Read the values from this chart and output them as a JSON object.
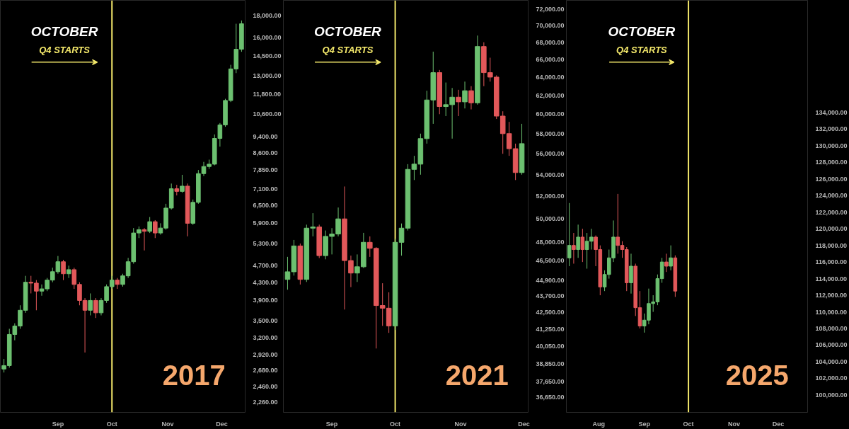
{
  "chart_data": [
    {
      "type": "candlestick",
      "log": true,
      "xlim": [
        "2017-07-31",
        "2017-12-14"
      ],
      "ylim": [
        2140,
        19500
      ],
      "xticks": [
        {
          "value": "2017-09-01",
          "label": "Sep"
        },
        {
          "value": "2017-10-01",
          "label": "Oct"
        },
        {
          "value": "2017-11-01",
          "label": "Nov"
        },
        {
          "value": "2017-12-01",
          "label": "Dec"
        }
      ],
      "yticks": [
        {
          "value": 2260,
          "label": "2,260.00"
        },
        {
          "value": 2460,
          "label": "2,460.00"
        },
        {
          "value": 2680,
          "label": "2,680.00"
        },
        {
          "value": 2920,
          "label": "2,920.00"
        },
        {
          "value": 3200,
          "label": "3,200.00"
        },
        {
          "value": 3500,
          "label": "3,500.00"
        },
        {
          "value": 3900,
          "label": "3,900.00"
        },
        {
          "value": 4300,
          "label": "4,300.00"
        },
        {
          "value": 4700,
          "label": "4,700.00"
        },
        {
          "value": 5300,
          "label": "5,300.00"
        },
        {
          "value": 5900,
          "label": "5,900.00"
        },
        {
          "value": 6500,
          "label": "6,500.00"
        },
        {
          "value": 7100,
          "label": "7,100.00"
        },
        {
          "value": 7850,
          "label": "7,850.00"
        },
        {
          "value": 8600,
          "label": "8,600.00"
        },
        {
          "value": 9400,
          "label": "9,400.00"
        },
        {
          "value": 10600,
          "label": "10,600.00"
        },
        {
          "value": 11800,
          "label": "11,800.00"
        },
        {
          "value": 13000,
          "label": "13,000.00"
        },
        {
          "value": 14500,
          "label": "14,500.00"
        },
        {
          "value": 16000,
          "label": "16,000.00"
        },
        {
          "value": 18000,
          "label": "18,000.00"
        }
      ],
      "ref_lines": [
        {
          "axis": "x",
          "value": "2017-10-01",
          "color": "#f2e76a"
        }
      ],
      "annotations": [
        "OCTOBER",
        "Q4 STARTS",
        "2017"
      ],
      "x": [
        "2017-08-02",
        "2017-08-05",
        "2017-08-08",
        "2017-08-11",
        "2017-08-14",
        "2017-08-17",
        "2017-08-20",
        "2017-08-23",
        "2017-08-26",
        "2017-08-29",
        "2017-09-01",
        "2017-09-04",
        "2017-09-07",
        "2017-09-10",
        "2017-09-13",
        "2017-09-16",
        "2017-09-19",
        "2017-09-22",
        "2017-09-25",
        "2017-09-28",
        "2017-10-01",
        "2017-10-04",
        "2017-10-07",
        "2017-10-10",
        "2017-10-13",
        "2017-10-16",
        "2017-10-19",
        "2017-10-22",
        "2017-10-25",
        "2017-10-28",
        "2017-10-31",
        "2017-11-03",
        "2017-11-06",
        "2017-11-09",
        "2017-11-12",
        "2017-11-15",
        "2017-11-18",
        "2017-11-21",
        "2017-11-24",
        "2017-11-27",
        "2017-11-30",
        "2017-12-03",
        "2017-12-06",
        "2017-12-09",
        "2017-12-12"
      ],
      "ohlc": [
        [
          2700,
          2850,
          2650,
          2750
        ],
        [
          2750,
          3350,
          2720,
          3250
        ],
        [
          3250,
          3450,
          3150,
          3400
        ],
        [
          3400,
          3800,
          3350,
          3700
        ],
        [
          3700,
          4450,
          3650,
          4300
        ],
        [
          4300,
          4450,
          4050,
          4280
        ],
        [
          4280,
          4350,
          3700,
          4100
        ],
        [
          4100,
          4250,
          4000,
          4150
        ],
        [
          4150,
          4400,
          4100,
          4350
        ],
        [
          4350,
          4650,
          4300,
          4550
        ],
        [
          4550,
          4950,
          4500,
          4800
        ],
        [
          4800,
          4850,
          4350,
          4500
        ],
        [
          4500,
          4700,
          4400,
          4600
        ],
        [
          4600,
          4650,
          4150,
          4250
        ],
        [
          4250,
          4300,
          3800,
          3900
        ],
        [
          3900,
          3950,
          2950,
          3700
        ],
        [
          3700,
          4050,
          3600,
          3900
        ],
        [
          3900,
          3950,
          3550,
          3650
        ],
        [
          3650,
          3950,
          3600,
          3900
        ],
        [
          3900,
          4250,
          3850,
          4200
        ],
        [
          4200,
          4450,
          4150,
          4350
        ],
        [
          4350,
          4400,
          4150,
          4250
        ],
        [
          4250,
          4500,
          4200,
          4450
        ],
        [
          4450,
          4900,
          4400,
          4800
        ],
        [
          4800,
          5750,
          4750,
          5600
        ],
        [
          5600,
          5800,
          5450,
          5700
        ],
        [
          5700,
          5750,
          5100,
          5650
        ],
        [
          5650,
          6100,
          5600,
          5950
        ],
        [
          5950,
          6000,
          5450,
          5600
        ],
        [
          5600,
          5900,
          5550,
          5750
        ],
        [
          5750,
          6550,
          5700,
          6400
        ],
        [
          6400,
          7300,
          6350,
          7100
        ],
        [
          7100,
          7250,
          6850,
          7000
        ],
        [
          7000,
          7650,
          6950,
          7200
        ],
        [
          7200,
          7300,
          5500,
          5900
        ],
        [
          5900,
          6700,
          5850,
          6600
        ],
        [
          6600,
          7850,
          6550,
          7700
        ],
        [
          7700,
          8200,
          7600,
          8000
        ],
        [
          8000,
          8300,
          7900,
          8100
        ],
        [
          8100,
          9500,
          8050,
          9300
        ],
        [
          9300,
          10100,
          8900,
          10000
        ],
        [
          10000,
          11500,
          9900,
          11400
        ],
        [
          11400,
          13800,
          11300,
          13500
        ],
        [
          13500,
          17200,
          13200,
          15000
        ],
        [
          15000,
          17500,
          14800,
          17200
        ]
      ],
      "colors": [
        "#6cc070",
        "#6cc070",
        "#6cc070",
        "#6cc070",
        "#6cc070",
        "#e2585a",
        "#e2585a",
        "#6cc070",
        "#6cc070",
        "#6cc070",
        "#6cc070",
        "#e2585a",
        "#6cc070",
        "#e2585a",
        "#e2585a",
        "#e2585a",
        "#6cc070",
        "#e2585a",
        "#6cc070",
        "#6cc070",
        "#6cc070",
        "#e2585a",
        "#6cc070",
        "#6cc070",
        "#6cc070",
        "#6cc070",
        "#e2585a",
        "#6cc070",
        "#e2585a",
        "#6cc070",
        "#6cc070",
        "#6cc070",
        "#e2585a",
        "#6cc070",
        "#e2585a",
        "#6cc070",
        "#6cc070",
        "#6cc070",
        "#6cc070",
        "#6cc070",
        "#6cc070",
        "#6cc070",
        "#6cc070",
        "#6cc070",
        "#6cc070"
      ]
    },
    {
      "type": "candlestick",
      "log": true,
      "xlim": [
        "2021-08-09",
        "2021-12-03"
      ],
      "ylim": [
        35700,
        73150
      ],
      "xticks": [
        {
          "value": "2021-09-01",
          "label": "Sep"
        },
        {
          "value": "2021-10-01",
          "label": "Oct"
        },
        {
          "value": "2021-11-01",
          "label": "Nov"
        },
        {
          "value": "2021-12-01",
          "label": "Dec"
        }
      ],
      "yticks": [
        {
          "value": 36650,
          "label": "36,650.00"
        },
        {
          "value": 37650,
          "label": "37,650.00"
        },
        {
          "value": 38850,
          "label": "38,850.00"
        },
        {
          "value": 40050,
          "label": "40,050.00"
        },
        {
          "value": 41250,
          "label": "41,250.00"
        },
        {
          "value": 42500,
          "label": "42,500.00"
        },
        {
          "value": 43700,
          "label": "43,700.00"
        },
        {
          "value": 44900,
          "label": "44,900.00"
        },
        {
          "value": 46500,
          "label": "46,500.00"
        },
        {
          "value": 48000,
          "label": "48,000.00"
        },
        {
          "value": 50000,
          "label": "50,000.00"
        },
        {
          "value": 52000,
          "label": "52,000.00"
        },
        {
          "value": 54000,
          "label": "54,000.00"
        },
        {
          "value": 56000,
          "label": "56,000.00"
        },
        {
          "value": 58000,
          "label": "58,000.00"
        },
        {
          "value": 60000,
          "label": "60,000.00"
        },
        {
          "value": 62000,
          "label": "62,000.00"
        },
        {
          "value": 64000,
          "label": "64,000.00"
        },
        {
          "value": 66000,
          "label": "66,000.00"
        },
        {
          "value": 68000,
          "label": "68,000.00"
        },
        {
          "value": 70000,
          "label": "70,000.00"
        },
        {
          "value": 72000,
          "label": "72,000.00"
        }
      ],
      "ref_lines": [
        {
          "axis": "x",
          "value": "2021-10-01",
          "color": "#f2e76a"
        }
      ],
      "annotations": [
        "OCTOBER",
        "Q4 STARTS",
        "2021"
      ],
      "x": [
        "2021-08-11",
        "2021-08-14",
        "2021-08-17",
        "2021-08-20",
        "2021-08-23",
        "2021-08-26",
        "2021-08-29",
        "2021-09-01",
        "2021-09-04",
        "2021-09-07",
        "2021-09-10",
        "2021-09-13",
        "2021-09-16",
        "2021-09-19",
        "2021-09-22",
        "2021-09-25",
        "2021-09-28",
        "2021-10-01",
        "2021-10-04",
        "2021-10-07",
        "2021-10-10",
        "2021-10-13",
        "2021-10-16",
        "2021-10-19",
        "2021-10-22",
        "2021-10-25",
        "2021-10-28",
        "2021-10-31",
        "2021-11-03",
        "2021-11-06",
        "2021-11-09",
        "2021-11-12",
        "2021-11-15",
        "2021-11-18",
        "2021-11-21",
        "2021-11-24",
        "2021-11-27",
        "2021-11-30"
      ],
      "ohlc": [
        [
          45000,
          46800,
          44200,
          45600
        ],
        [
          45600,
          48200,
          45300,
          47700
        ],
        [
          47700,
          47900,
          44600,
          45000
        ],
        [
          45000,
          49500,
          44800,
          49200
        ],
        [
          49200,
          50500,
          48500,
          49300
        ],
        [
          49300,
          49500,
          46700,
          46900
        ],
        [
          46900,
          49000,
          46600,
          48500
        ],
        [
          48500,
          49200,
          47000,
          48700
        ],
        [
          48700,
          51000,
          48500,
          50000
        ],
        [
          50000,
          52900,
          42700,
          46500
        ],
        [
          46500,
          46900,
          44400,
          45500
        ],
        [
          45500,
          47000,
          44800,
          46000
        ],
        [
          46000,
          48800,
          45900,
          48000
        ],
        [
          48000,
          48500,
          46800,
          47500
        ],
        [
          47500,
          47600,
          39900,
          43000
        ],
        [
          43000,
          44700,
          41500,
          42800
        ],
        [
          42800,
          44000,
          41000,
          41500
        ],
        [
          41500,
          48300,
          41200,
          48000
        ],
        [
          48000,
          49600,
          46900,
          49200
        ],
        [
          49200,
          55000,
          49000,
          54500
        ],
        [
          54500,
          55800,
          53500,
          55000
        ],
        [
          55000,
          58000,
          54000,
          57500
        ],
        [
          57500,
          62500,
          57000,
          61500
        ],
        [
          61500,
          66900,
          59000,
          64500
        ],
        [
          64500,
          64800,
          60000,
          60800
        ],
        [
          60800,
          63400,
          59800,
          61000
        ],
        [
          61000,
          62800,
          57500,
          61800
        ],
        [
          61800,
          62600,
          59800,
          61300
        ],
        [
          61300,
          63500,
          60600,
          62500
        ],
        [
          62500,
          63000,
          60500,
          61200
        ],
        [
          61200,
          68800,
          61000,
          67500
        ],
        [
          67500,
          68000,
          63000,
          64500
        ],
        [
          64500,
          66200,
          63500,
          64000
        ],
        [
          64000,
          64200,
          59500,
          59800
        ],
        [
          59800,
          60300,
          56000,
          58000
        ],
        [
          58000,
          59200,
          55800,
          56500
        ],
        [
          56500,
          57000,
          53500,
          54200
        ],
        [
          54200,
          59000,
          54000,
          57000
        ]
      ],
      "colors": [
        "#6cc070",
        "#6cc070",
        "#e2585a",
        "#6cc070",
        "#6cc070",
        "#e2585a",
        "#6cc070",
        "#6cc070",
        "#6cc070",
        "#e2585a",
        "#e2585a",
        "#6cc070",
        "#6cc070",
        "#e2585a",
        "#e2585a",
        "#e2585a",
        "#e2585a",
        "#6cc070",
        "#6cc070",
        "#6cc070",
        "#6cc070",
        "#6cc070",
        "#6cc070",
        "#6cc070",
        "#e2585a",
        "#6cc070",
        "#6cc070",
        "#e2585a",
        "#6cc070",
        "#e2585a",
        "#6cc070",
        "#e2585a",
        "#e2585a",
        "#e2585a",
        "#e2585a",
        "#e2585a",
        "#e2585a",
        "#6cc070"
      ]
    },
    {
      "type": "candlestick",
      "xlim": [
        "2025-07-10",
        "2025-12-21"
      ],
      "ylim": [
        97900,
        147500
      ],
      "xticks": [
        {
          "value": "2025-08-01",
          "label": "Aug"
        },
        {
          "value": "2025-09-01",
          "label": "Sep"
        },
        {
          "value": "2025-10-01",
          "label": "Oct"
        },
        {
          "value": "2025-11-01",
          "label": "Nov"
        },
        {
          "value": "2025-12-01",
          "label": "Dec"
        }
      ],
      "yticks": [
        {
          "value": 100000,
          "label": "100,000.00"
        },
        {
          "value": 102000,
          "label": "102,000.00"
        },
        {
          "value": 104000,
          "label": "104,000.00"
        },
        {
          "value": 106000,
          "label": "106,000.00"
        },
        {
          "value": 108000,
          "label": "108,000.00"
        },
        {
          "value": 110000,
          "label": "110,000.00"
        },
        {
          "value": 112000,
          "label": "112,000.00"
        },
        {
          "value": 114000,
          "label": "114,000.00"
        },
        {
          "value": 116000,
          "label": "116,000.00"
        },
        {
          "value": 118000,
          "label": "118,000.00"
        },
        {
          "value": 120000,
          "label": "120,000.00"
        },
        {
          "value": 122000,
          "label": "122,000.00"
        },
        {
          "value": 124000,
          "label": "124,000.00"
        },
        {
          "value": 126000,
          "label": "126,000.00"
        },
        {
          "value": 128000,
          "label": "128,000.00"
        },
        {
          "value": 130000,
          "label": "130,000.00"
        },
        {
          "value": 132000,
          "label": "132,000.00"
        },
        {
          "value": 134000,
          "label": "134,000.00"
        }
      ],
      "ref_lines": [
        {
          "axis": "x",
          "value": "2025-10-01",
          "color": "#f2e76a"
        }
      ],
      "annotations": [
        "OCTOBER",
        "Q4 STARTS",
        "2025"
      ],
      "x": [
        "2025-07-12",
        "2025-07-15",
        "2025-07-18",
        "2025-07-21",
        "2025-07-24",
        "2025-07-27",
        "2025-07-30",
        "2025-08-02",
        "2025-08-05",
        "2025-08-08",
        "2025-08-11",
        "2025-08-14",
        "2025-08-17",
        "2025-08-20",
        "2025-08-23",
        "2025-08-26",
        "2025-08-29",
        "2025-09-01",
        "2025-09-04",
        "2025-09-07",
        "2025-09-10",
        "2025-09-13",
        "2025-09-16",
        "2025-09-19",
        "2025-09-22"
      ],
      "ohlc": [
        [
          116500,
          123100,
          115500,
          118000
        ],
        [
          118000,
          119500,
          115800,
          117500
        ],
        [
          117500,
          120500,
          116500,
          119000
        ],
        [
          119000,
          120000,
          116000,
          117500
        ],
        [
          117500,
          119500,
          115200,
          118500
        ],
        [
          118500,
          120000,
          117500,
          119000
        ],
        [
          119000,
          119200,
          115500,
          117500
        ],
        [
          117500,
          118000,
          112000,
          113000
        ],
        [
          113000,
          115000,
          112500,
          114500
        ],
        [
          114500,
          117500,
          114000,
          116500
        ],
        [
          116500,
          121000,
          116000,
          119000
        ],
        [
          119000,
          124200,
          117000,
          118000
        ],
        [
          118000,
          118500,
          116500,
          117500
        ],
        [
          117500,
          117800,
          112500,
          113500
        ],
        [
          113500,
          117000,
          112200,
          115500
        ],
        [
          115500,
          115800,
          109500,
          110500
        ],
        [
          110500,
          112500,
          108000,
          108300
        ],
        [
          108300,
          109800,
          107500,
          109000
        ],
        [
          109000,
          112800,
          108500,
          111000
        ],
        [
          111000,
          112000,
          110000,
          111200
        ],
        [
          111200,
          114500,
          110800,
          114000
        ],
        [
          114000,
          116500,
          113500,
          116000
        ],
        [
          116000,
          117000,
          114800,
          115500
        ],
        [
          115500,
          118000,
          115000,
          116500
        ],
        [
          116500,
          116800,
          111800,
          112500
        ]
      ],
      "colors": [
        "#6cc070",
        "#e2585a",
        "#6cc070",
        "#e2585a",
        "#6cc070",
        "#6cc070",
        "#e2585a",
        "#e2585a",
        "#6cc070",
        "#6cc070",
        "#6cc070",
        "#e2585a",
        "#e2585a",
        "#e2585a",
        "#6cc070",
        "#e2585a",
        "#e2585a",
        "#6cc070",
        "#6cc070",
        "#6cc070",
        "#6cc070",
        "#6cc070",
        "#e2585a",
        "#6cc070",
        "#e2585a"
      ]
    }
  ]
}
